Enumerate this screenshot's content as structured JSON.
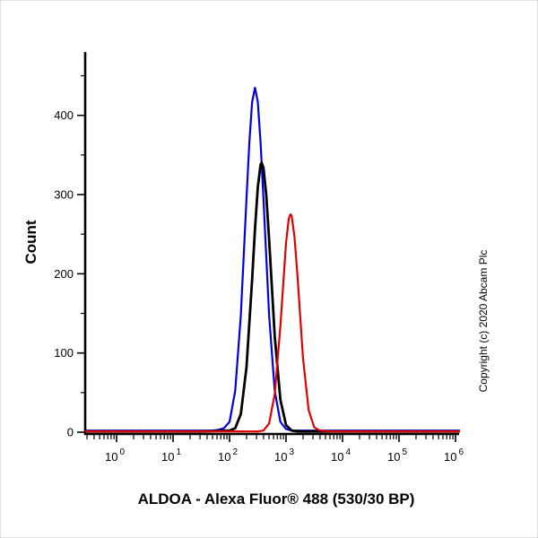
{
  "chart_data": {
    "type": "line",
    "title": "",
    "xlabel": "ALDOA - Alexa Fluor® 488 (530/30 BP)",
    "ylabel": "Count",
    "copyright": "Copyright (c) 2020 Abcam Plc",
    "x_scale": "log10",
    "x_tick_exponents": [
      0,
      1,
      2,
      3,
      4,
      5,
      6
    ],
    "x_tick_base": "10",
    "y_ticks": [
      0,
      100,
      200,
      300,
      400
    ],
    "ylim": [
      0,
      480
    ],
    "xlim_log10": [
      -0.55,
      6.06
    ],
    "grid": false,
    "legend_position": "none",
    "series": [
      {
        "name": "blue-curve",
        "color": "#0000dd",
        "peak_log10_x": 2.45,
        "peak_count": 435,
        "x_log10": [
          0,
          0.5,
          1,
          1.5,
          1.7,
          1.8,
          1.9,
          2.0,
          2.1,
          2.2,
          2.3,
          2.35,
          2.4,
          2.45,
          2.5,
          2.55,
          2.6,
          2.7,
          2.8,
          2.9,
          3.0,
          3.1,
          3.3,
          4,
          5,
          6
        ],
        "counts": [
          2,
          2,
          2,
          2,
          2,
          3,
          5,
          13,
          52,
          148,
          295,
          366,
          417,
          435,
          417,
          366,
          295,
          148,
          52,
          13,
          4,
          2,
          2,
          2,
          2,
          2
        ]
      },
      {
        "name": "black-curve",
        "color": "#000000",
        "peak_log10_x": 2.57,
        "peak_count": 340,
        "x_log10": [
          0,
          0.5,
          1,
          1.5,
          2.0,
          2.1,
          2.2,
          2.3,
          2.4,
          2.45,
          2.5,
          2.55,
          2.57,
          2.6,
          2.65,
          2.7,
          2.8,
          2.9,
          3.0,
          3.1,
          3.2,
          3.5,
          4,
          5,
          6
        ],
        "counts": [
          1,
          1,
          1,
          1,
          2,
          5,
          23,
          82,
          193,
          257,
          309,
          338,
          340,
          334,
          300,
          244,
          121,
          41,
          9,
          2,
          1,
          1,
          1,
          1,
          1
        ]
      },
      {
        "name": "red-curve",
        "color": "#e00000",
        "peak_log10_x": 3.08,
        "peak_count": 275,
        "x_log10": [
          0,
          0.5,
          1,
          1.5,
          2,
          2.4,
          2.5,
          2.6,
          2.7,
          2.8,
          2.9,
          3.0,
          3.05,
          3.08,
          3.1,
          3.15,
          3.2,
          3.3,
          3.4,
          3.5,
          3.6,
          3.8,
          4,
          4.5,
          5,
          5.5,
          6
        ],
        "counts": [
          1,
          1,
          1,
          1,
          1,
          1,
          1,
          2,
          11,
          48,
          134,
          239,
          270,
          275,
          273,
          247,
          200,
          94,
          28,
          6,
          2,
          1,
          1,
          1,
          1,
          1,
          1
        ]
      }
    ]
  }
}
